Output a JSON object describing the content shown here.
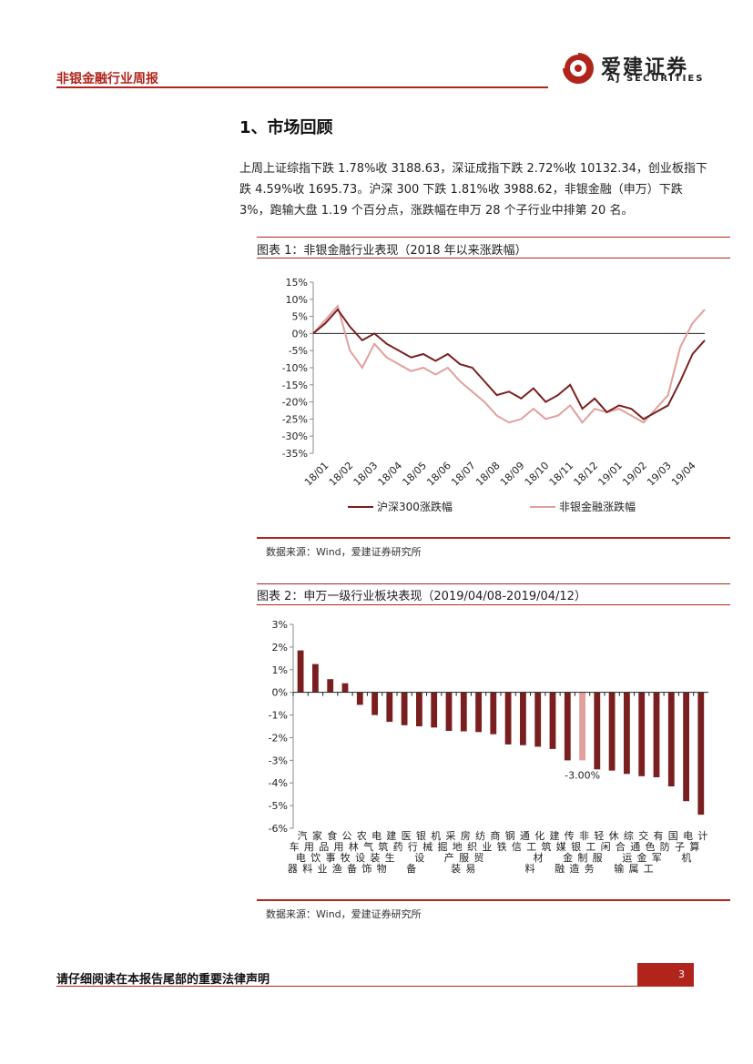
{
  "header": {
    "title": "非银金融行业周报",
    "logo_cn": "爱建证券",
    "logo_en": "AJ SECURITIES"
  },
  "section": {
    "title": "1、市场回顾"
  },
  "paragraph": "上周上证综指下跌 1.78%收 3188.63，深证成指下跌 2.72%收 10132.34，创业板指下跌 4.59%收 1695.73。沪深 300 下跌 1.81%收 3988.62，非银金融（申万）下跌 3%，跑输大盘 1.19 个百分点，涨跌幅在申万 28 个子行业中排第 20 名。",
  "figure1": {
    "title": "图表 1：非银金融行业表现（2018 年以来涨跌幅）",
    "source": "数据来源：Wind，爱建证券研究所"
  },
  "figure2": {
    "title": "图表 2：申万一级行业板块表现（2019/04/08-2019/04/12）",
    "source": "数据来源：Wind，爱建证券研究所"
  },
  "colors": {
    "accent": "#b0241c",
    "series1": "#7a1f1f",
    "series2": "#e0a09c"
  },
  "chart_data": [
    {
      "type": "line",
      "title": "",
      "xlabel": "",
      "ylabel": "",
      "ylim": [
        -35,
        15
      ],
      "yticks": [
        "15%",
        "10%",
        "5%",
        "0%",
        "-5%",
        "-10%",
        "-15%",
        "-20%",
        "-25%",
        "-30%",
        "-35%"
      ],
      "ytick_values": [
        15,
        10,
        5,
        0,
        -5,
        -10,
        -15,
        -20,
        -25,
        -30,
        -35
      ],
      "categories": [
        "18/01",
        "18/02",
        "18/03",
        "18/04",
        "18/05",
        "18/06",
        "18/07",
        "18/08",
        "18/09",
        "18/10",
        "18/11",
        "18/12",
        "19/01",
        "19/02",
        "19/03",
        "19/04"
      ],
      "x": [
        0,
        1,
        2,
        3,
        4,
        5,
        6,
        7,
        8,
        9,
        10,
        11,
        12,
        13,
        14,
        15,
        16,
        17,
        18,
        19,
        20,
        21,
        22,
        23,
        24,
        25,
        26,
        27,
        28,
        29,
        30,
        31,
        32
      ],
      "series": [
        {
          "name": "沪深300涨跌幅",
          "values": [
            0,
            3,
            7,
            2,
            -2,
            0,
            -3,
            -5,
            -7,
            -6,
            -8,
            -6,
            -9,
            -10,
            -14,
            -18,
            -17,
            -19,
            -16,
            -20,
            -18,
            -15,
            -22,
            -19,
            -23,
            -21,
            -22,
            -25,
            -23,
            -21,
            -14,
            -6,
            -2
          ]
        },
        {
          "name": "非银金融涨跌幅",
          "values": [
            0,
            4,
            8,
            -5,
            -10,
            -3,
            -7,
            -9,
            -11,
            -10,
            -12,
            -10,
            -14,
            -17,
            -20,
            -24,
            -26,
            -25,
            -22,
            -25,
            -24,
            -21,
            -26,
            -22,
            -23,
            -22,
            -24,
            -26,
            -22,
            -18,
            -4,
            3,
            7
          ]
        }
      ],
      "legend": "bottom"
    },
    {
      "type": "bar",
      "ylim": [
        -6,
        3
      ],
      "yticks": [
        "3%",
        "2%",
        "1%",
        "0%",
        "-1%",
        "-2%",
        "-3%",
        "-4%",
        "-5%",
        "-6%"
      ],
      "ytick_values": [
        3,
        2,
        1,
        0,
        -1,
        -2,
        -3,
        -4,
        -5,
        -6
      ],
      "categories": [
        "汽车",
        "家用电器",
        "食品饮料",
        "公用事业",
        "农林牧渔",
        "电气设备",
        "建筑装饰",
        "医药生物",
        "银行",
        "机械设备",
        "采掘",
        "房地产",
        "纺织服装",
        "商业贸易",
        "钢铁",
        "通信",
        "化工",
        "建筑材料",
        "传媒",
        "非银金融",
        "轻工制造",
        "休闲服务",
        "综合",
        "交通运输",
        "有色金属",
        "国防军工",
        "电子",
        "计算机"
      ],
      "values": [
        1.85,
        1.25,
        0.58,
        0.4,
        -0.55,
        -1.0,
        -1.3,
        -1.45,
        -1.5,
        -1.55,
        -1.7,
        -1.72,
        -1.75,
        -1.85,
        -2.3,
        -2.33,
        -2.4,
        -2.5,
        -3.0,
        -3.0,
        -3.4,
        -3.45,
        -3.6,
        -3.7,
        -3.75,
        -4.15,
        -4.8,
        -5.4
      ],
      "highlight_index": 19,
      "annotation": "-3.00%"
    }
  ],
  "footer": {
    "text": "请仔细阅读在本报告尾部的重要法律声明",
    "page": "3"
  }
}
